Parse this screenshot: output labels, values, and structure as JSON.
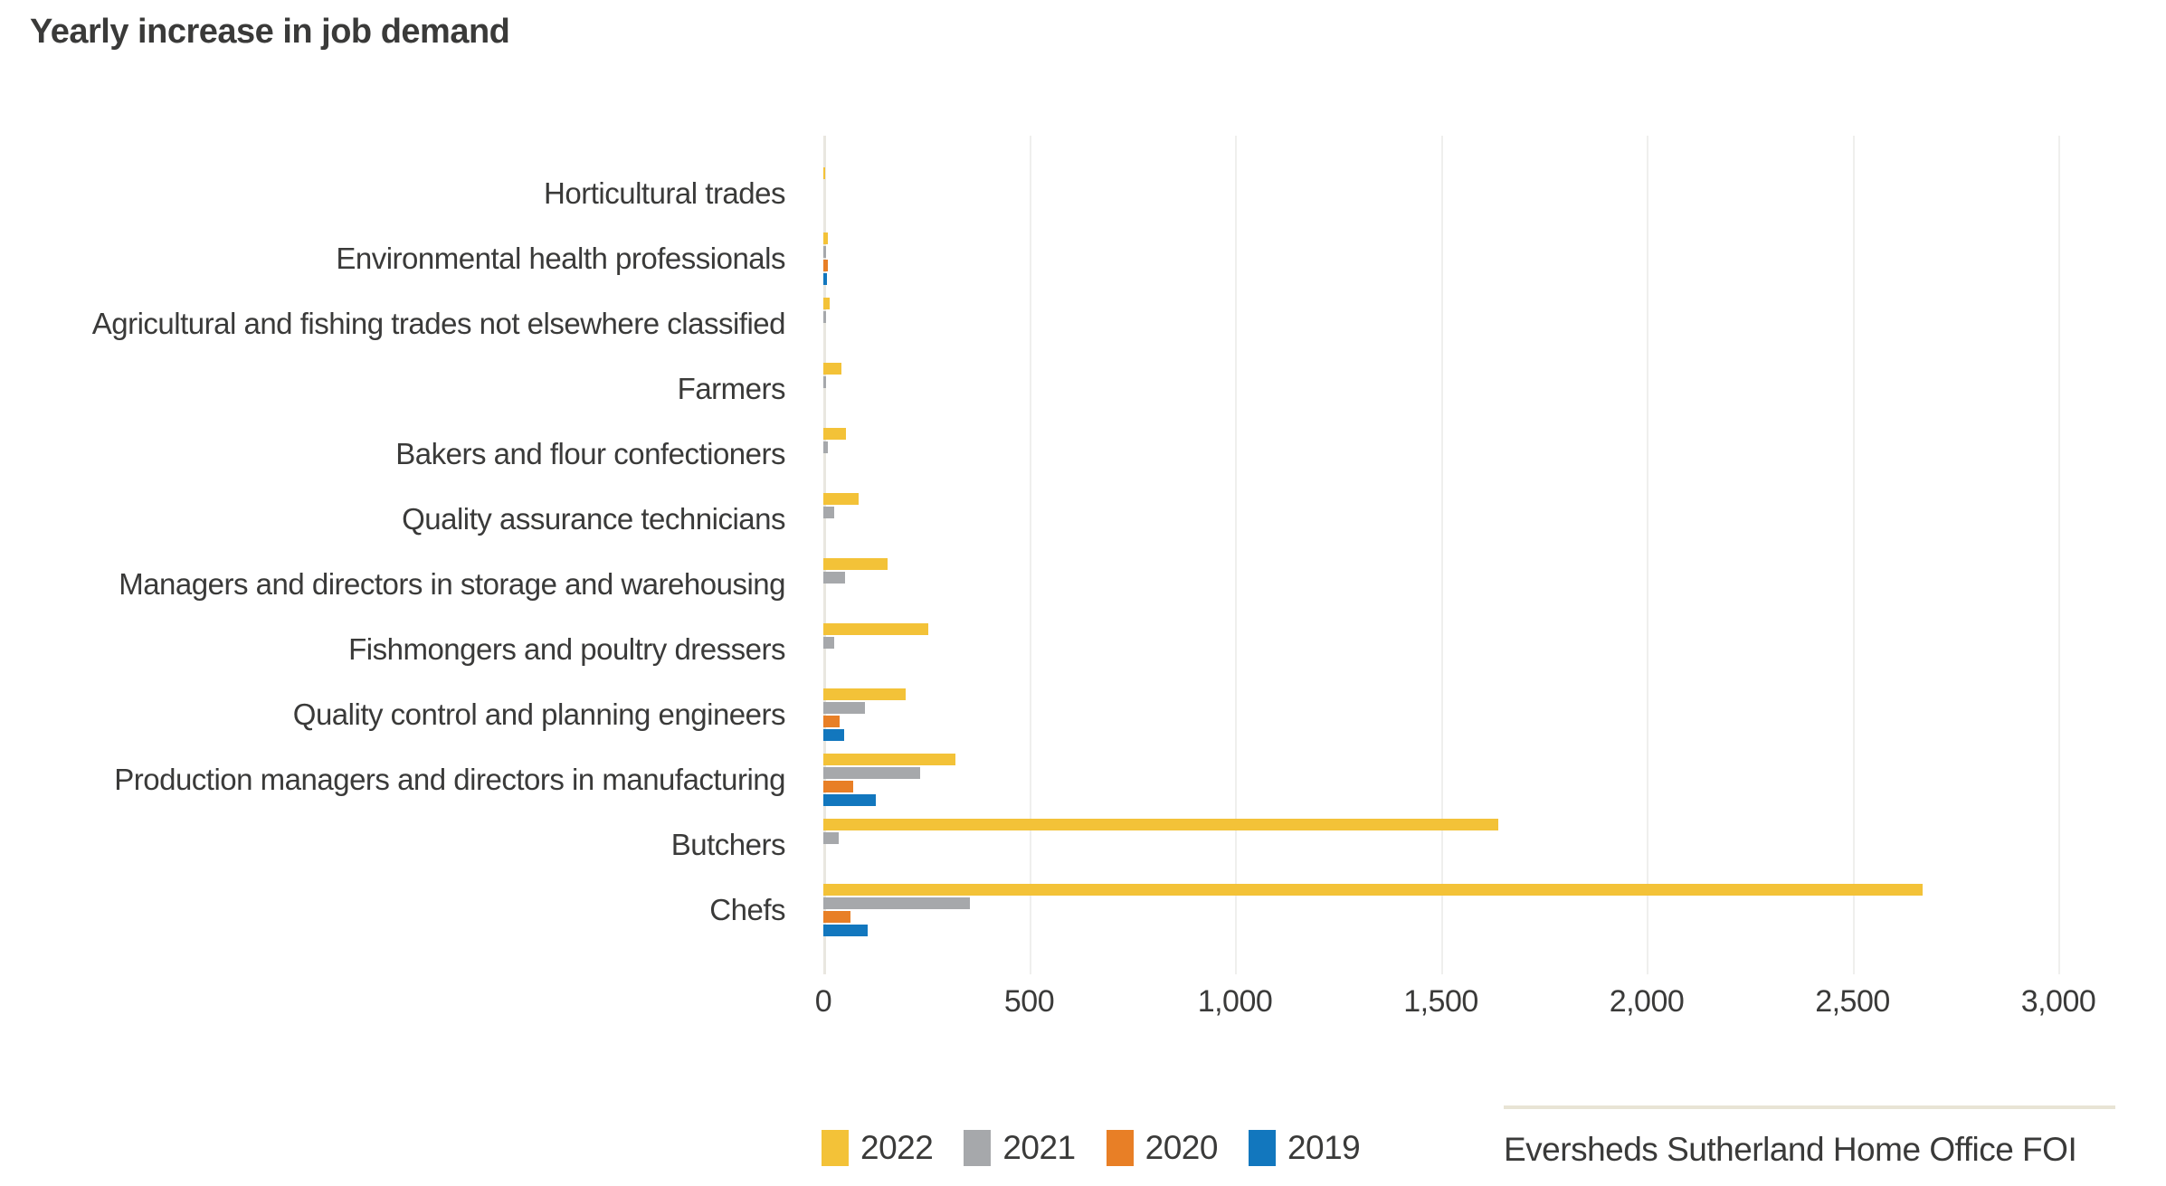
{
  "title": "Yearly increase in job demand",
  "source": {
    "label": "Eversheds Sutherland Home Office FOI"
  },
  "colors": {
    "yellow_2022": "#F3C238",
    "gray_2021": "#A6A8AB",
    "orange_2020": "#E87F26",
    "blue_2019": "#1277BE",
    "gridline": "#EFEFED",
    "zero_axis": "#E9E7E0",
    "text": "#3A3A39",
    "source_rule": "#E8E4D5"
  },
  "chart_data": {
    "type": "bar",
    "orientation": "horizontal",
    "title": "Yearly increase in job demand",
    "xlabel": "",
    "ylabel": "",
    "xlim": [
      0,
      3000
    ],
    "grid": true,
    "legend_position": "bottom",
    "x_ticks": [
      "0",
      "500",
      "1,000",
      "1,500",
      "2,000",
      "2,500",
      "3,000"
    ],
    "x_tick_values": [
      0,
      500,
      1000,
      1500,
      2000,
      2500,
      3000
    ],
    "categories": [
      "Horticultural trades",
      "Environmental health professionals",
      "Agricultural and fishing trades not elsewhere classified",
      "Farmers",
      "Bakers and flour confectioners",
      "Quality assurance technicians",
      "Managers and directors in storage and warehousing",
      "Fishmongers and poultry dressers",
      "Quality control and planning engineers",
      "Production managers and directors in manufacturing",
      "Butchers",
      "Chefs"
    ],
    "series": [
      {
        "name": "2022",
        "color": "#F3C238",
        "values": [
          5,
          10,
          15,
          45,
          55,
          85,
          155,
          255,
          200,
          320,
          1640,
          2670
        ]
      },
      {
        "name": "2021",
        "color": "#A6A8AB",
        "values": [
          0,
          7,
          7,
          7,
          10,
          27,
          52,
          26,
          100,
          235,
          37,
          355
        ]
      },
      {
        "name": "2020",
        "color": "#E87F26",
        "values": [
          0,
          12,
          0,
          0,
          0,
          0,
          0,
          0,
          40,
          73,
          0,
          65
        ]
      },
      {
        "name": "2019",
        "color": "#1277BE",
        "values": [
          0,
          9,
          0,
          0,
          0,
          0,
          0,
          0,
          50,
          127,
          0,
          107
        ]
      }
    ]
  },
  "legend": [
    {
      "label": "2022",
      "color": "#F3C238"
    },
    {
      "label": "2021",
      "color": "#A6A8AB"
    },
    {
      "label": "2020",
      "color": "#E87F26"
    },
    {
      "label": "2019",
      "color": "#1277BE"
    }
  ]
}
